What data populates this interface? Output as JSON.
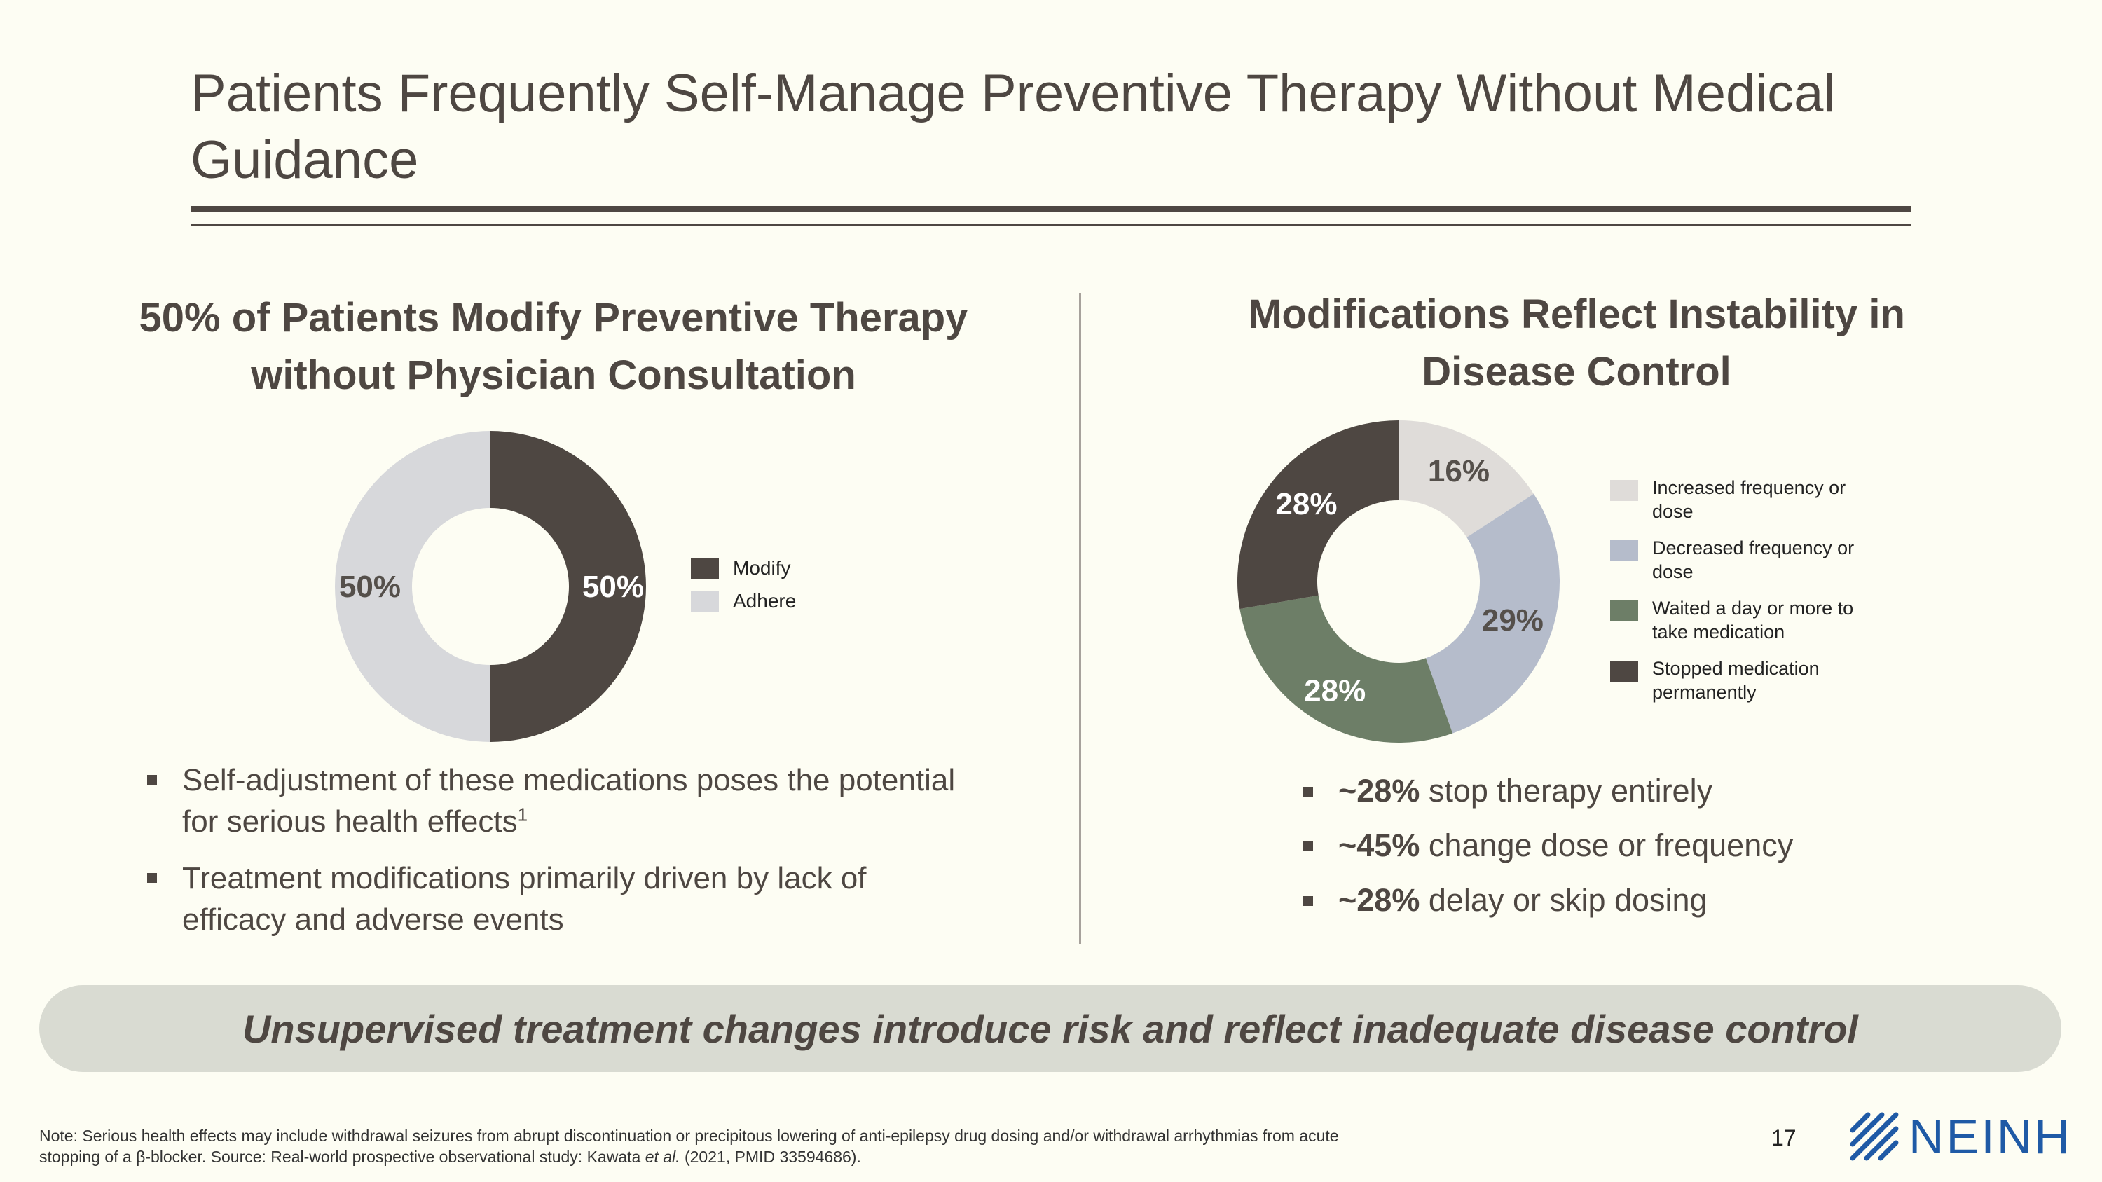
{
  "title": "Patients Frequently Self-Manage Preventive Therapy Without Medical Guidance",
  "colors": {
    "dark": "#4e4742",
    "light_gray": "#d7d8db",
    "pale_gray": "#dfdcd9",
    "blue_gray": "#b5bccb",
    "sage": "#6d7e67",
    "banner": "#d9dbd2",
    "brand_blue": "#1f5aa6"
  },
  "left": {
    "heading": "50% of Patients Modify Preventive Therapy without Physician Consultation",
    "bullets": [
      {
        "text": "Self-adjustment of these medications poses the potential for serious health effects",
        "superscript": "1"
      },
      {
        "text": "Treatment modifications primarily driven by lack of efficacy and adverse events"
      }
    ]
  },
  "right": {
    "heading": "Modifications Reflect Instability in Disease Control",
    "bullets": [
      {
        "bold": "~28%",
        "text": " stop therapy entirely"
      },
      {
        "bold": "~45%",
        "text": " change dose or frequency"
      },
      {
        "bold": "~28%",
        "text": " delay or skip dosing"
      }
    ]
  },
  "chart_data": [
    {
      "type": "pie",
      "donut": true,
      "title": "50% of Patients Modify Preventive Therapy without Physician Consultation",
      "categories": [
        "Modify",
        "Adhere"
      ],
      "values": [
        50,
        50
      ],
      "labels": [
        "50%",
        "50%"
      ],
      "colors": [
        "#4e4742",
        "#d7d8db"
      ],
      "legend": "right"
    },
    {
      "type": "pie",
      "donut": true,
      "title": "Modifications Reflect Instability in Disease Control",
      "categories": [
        "Increased frequency or dose",
        "Decreased frequency or dose",
        "Waited a day or more to take medication",
        "Stopped medication permanently"
      ],
      "values": [
        16,
        29,
        28,
        28
      ],
      "labels": [
        "16%",
        "29%",
        "28%",
        "28%"
      ],
      "colors": [
        "#dfdcd9",
        "#b5bccb",
        "#6d7e67",
        "#4e4742"
      ],
      "legend": "right"
    }
  ],
  "banner": "Unsupervised treatment changes introduce risk and reflect inadequate disease control",
  "footnote": {
    "line1": "Note: Serious health effects may include withdrawal seizures from abrupt discontinuation or precipitous lowering of anti-epilepsy drug dosing and/or withdrawal arrhythmias from acute",
    "line2_pre": "stopping of a β-blocker.  Source: Real-world prospective observational study: Kawata ",
    "line2_em": "et al.",
    "line2_post": " (2021, PMID 33594686)."
  },
  "page_number": "17",
  "logo": {
    "icon": "neinh-logo-icon",
    "text": "NEINH"
  }
}
